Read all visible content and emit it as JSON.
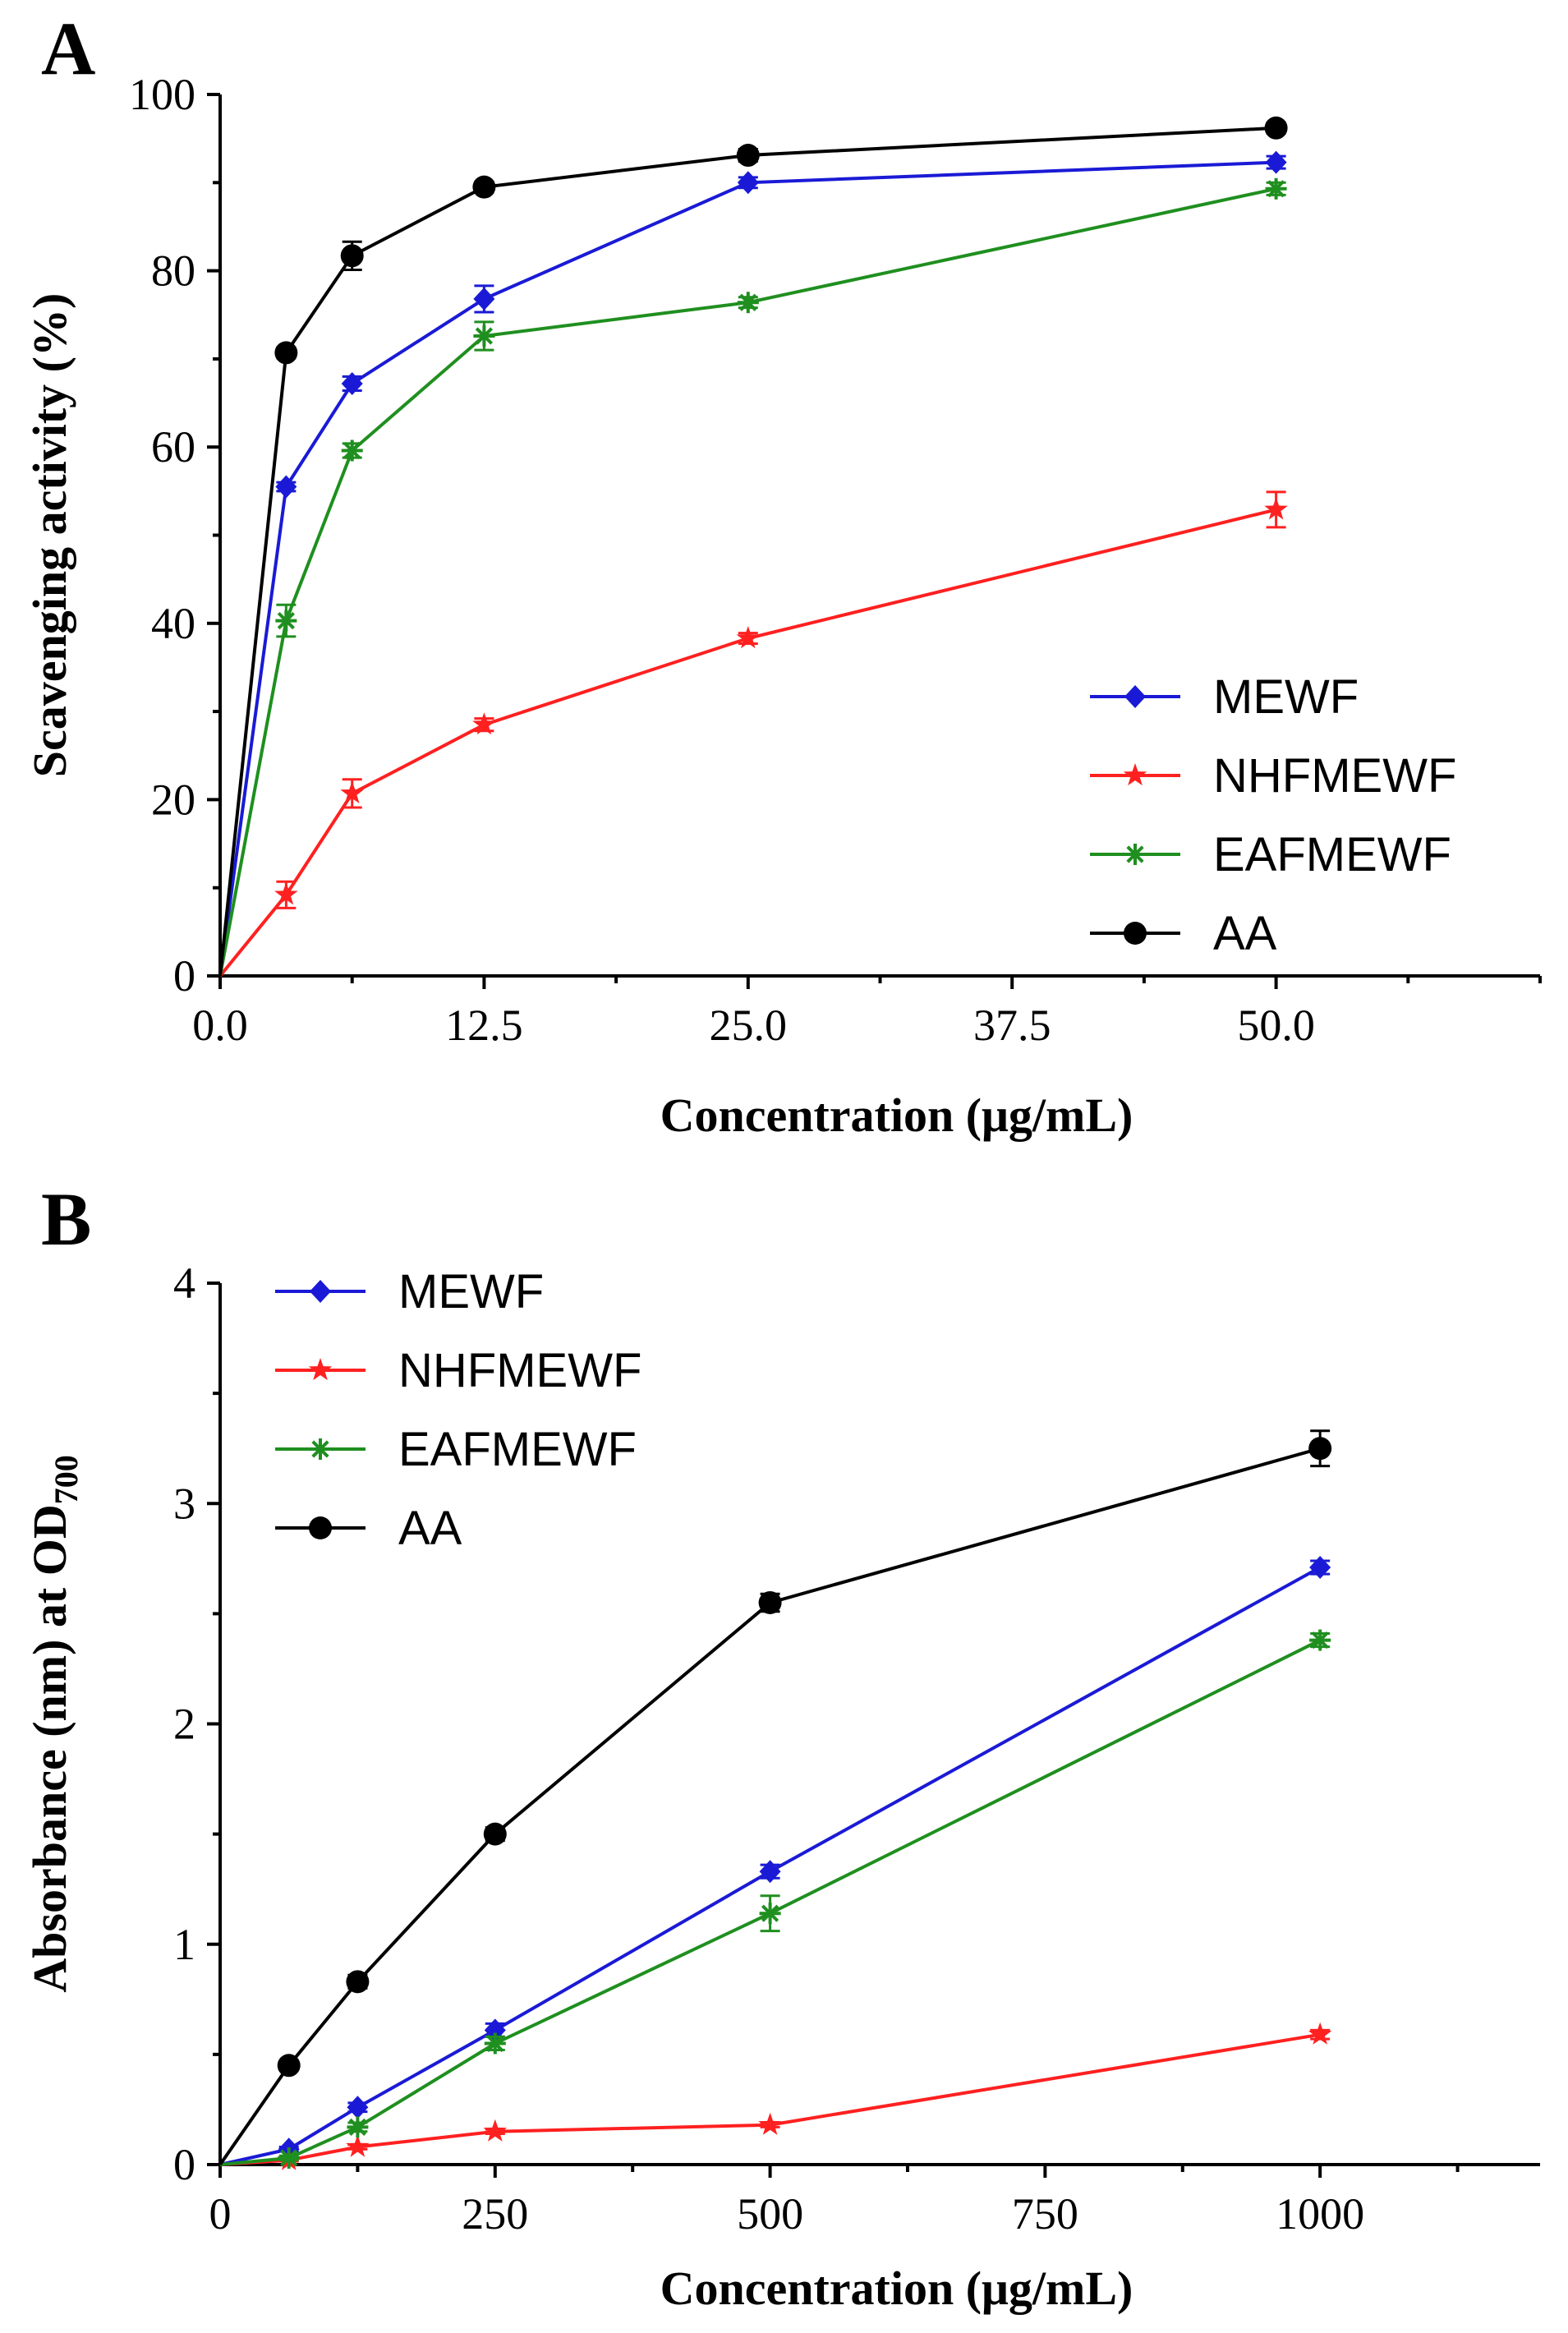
{
  "chart_data": [
    {
      "panel": "A",
      "type": "line",
      "xlabel": "Concentration (μg/mL)",
      "ylabel": "Scavenging activity (%)",
      "xlim": [
        0,
        62.5
      ],
      "ylim": [
        0,
        100
      ],
      "xticks": [
        "0.0",
        "12.5",
        "25.0",
        "37.5",
        "50.0"
      ],
      "xtick_values": [
        0,
        12.5,
        25,
        37.5,
        50
      ],
      "yticks": [
        "0",
        "20",
        "40",
        "60",
        "80",
        "100"
      ],
      "ytick_values": [
        0,
        20,
        40,
        60,
        80,
        100
      ],
      "legend_position": "bottom-right",
      "x": [
        0,
        3.125,
        6.25,
        12.5,
        25,
        50
      ],
      "series": [
        {
          "name": "MEWF",
          "color": "#1a1ad6",
          "marker": "diamond",
          "values": [
            0,
            55.5,
            67.2,
            76.8,
            90.0,
            92.3
          ],
          "errors": [
            0,
            0.5,
            0.8,
            1.5,
            0.6,
            0.7
          ]
        },
        {
          "name": "NHFMEWF",
          "color": "#ff2020",
          "marker": "star",
          "values": [
            0,
            9.2,
            20.7,
            28.5,
            38.3,
            52.9
          ],
          "errors": [
            0,
            1.5,
            1.6,
            0.7,
            0.6,
            2.0
          ]
        },
        {
          "name": "EAFMEWF",
          "color": "#1f8f1f",
          "marker": "asterisk",
          "values": [
            0,
            40.3,
            59.6,
            72.6,
            76.4,
            89.3
          ],
          "errors": [
            0,
            1.8,
            0.8,
            1.6,
            0.6,
            0.7
          ]
        },
        {
          "name": "AA",
          "color": "#000000",
          "marker": "circle",
          "values": [
            0,
            70.7,
            81.7,
            89.5,
            93.1,
            96.2
          ],
          "errors": [
            0,
            0.6,
            1.6,
            0.6,
            0.7,
            0.6
          ]
        }
      ]
    },
    {
      "panel": "B",
      "type": "line",
      "xlabel": "Concentration (μg/mL)",
      "ylabel": "Absorbance (nm) at OD",
      "ylabel_subscript": "700",
      "xlim": [
        0,
        1200
      ],
      "ylim": [
        0,
        4
      ],
      "xticks": [
        "0",
        "250",
        "500",
        "750",
        "1000"
      ],
      "xtick_values": [
        0,
        250,
        500,
        750,
        1000
      ],
      "yticks": [
        "0",
        "1",
        "2",
        "3",
        "4"
      ],
      "ytick_values": [
        0,
        1,
        2,
        3,
        4
      ],
      "legend_position": "top-left",
      "x": [
        0,
        62.5,
        125,
        250,
        500,
        1000
      ],
      "series": [
        {
          "name": "MEWF",
          "color": "#1a1ad6",
          "marker": "diamond",
          "values": [
            0,
            0.07,
            0.26,
            0.61,
            1.33,
            2.71
          ],
          "errors": [
            0,
            0.01,
            0.02,
            0.03,
            0.03,
            0.03
          ]
        },
        {
          "name": "NHFMEWF",
          "color": "#ff2020",
          "marker": "star",
          "values": [
            0,
            0.02,
            0.08,
            0.15,
            0.18,
            0.59
          ],
          "errors": [
            0,
            0.005,
            0.01,
            0.01,
            0.01,
            0.02
          ]
        },
        {
          "name": "EAFMEWF",
          "color": "#1f8f1f",
          "marker": "asterisk",
          "values": [
            0,
            0.03,
            0.17,
            0.55,
            1.14,
            2.38
          ],
          "errors": [
            0,
            0.01,
            0.02,
            0.03,
            0.08,
            0.03
          ]
        },
        {
          "name": "AA",
          "color": "#000000",
          "marker": "circle",
          "values": [
            0,
            0.45,
            0.83,
            1.5,
            2.55,
            3.25
          ],
          "errors": [
            0,
            0.02,
            0.03,
            0.03,
            0.04,
            0.08
          ]
        }
      ]
    }
  ]
}
